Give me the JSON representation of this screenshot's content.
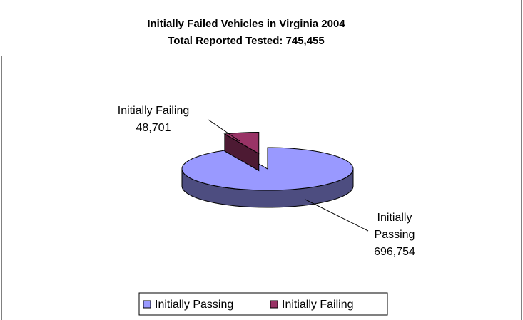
{
  "chart_data": {
    "type": "pie3d",
    "title": "Initially Failed Vehicles in Virginia 2004",
    "subtitle": "Total Reported Tested: 745,455",
    "categories": [
      "Initially Passing",
      "Initially Failing"
    ],
    "values": [
      696754,
      48701
    ],
    "value_labels": [
      "696,754",
      "48,701"
    ],
    "colors": [
      "#9999ff",
      "#993366"
    ],
    "legend": "bottom"
  }
}
